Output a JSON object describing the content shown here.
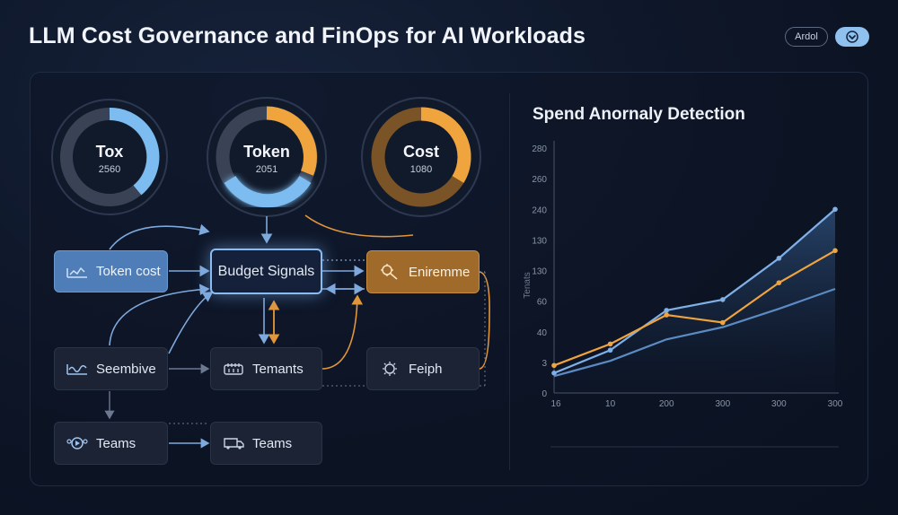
{
  "header": {
    "title": "LLM Cost Governance and FinOps for AI Workloads",
    "pill_label": "Ardol",
    "toggle_icon": "chevron-down-icon"
  },
  "gauges": [
    {
      "title": "Tox",
      "value": "2560",
      "color": "#7cbcf0",
      "progress": 0.4
    },
    {
      "title": "Token",
      "value": "2051",
      "color": "#f0a43e",
      "progress": 0.4
    },
    {
      "title": "Cost",
      "value": "1080",
      "color": "#f0a43e",
      "progress": 0.4
    }
  ],
  "flow": {
    "token_cost": "Token cost",
    "budget_signals": "Budget Signals",
    "enrichment": "Eniremme",
    "sembive": "Seembive",
    "tenants": "Temants",
    "feiph": "Feiph",
    "teams_left": "Teams",
    "teams_right": "Teams"
  },
  "colors": {
    "accent_blue": "#7cbcf0",
    "accent_orange": "#f0a43e",
    "budget_glow": "#8bbcf0"
  },
  "chart_data": {
    "type": "line",
    "title": "Spend Anornaly Detection",
    "ylabel": "Tenats",
    "x_tick_labels": [
      "16",
      "10",
      "200",
      "300",
      "300",
      "300"
    ],
    "y_tick_labels": [
      "0",
      "3",
      "40",
      "60",
      "130",
      "130",
      "240",
      "260",
      "280"
    ],
    "series": [
      {
        "color": "#7fb0e8",
        "values": [
          0.65,
          1.4,
          2.7,
          3.05,
          4.4,
          6.0
        ]
      },
      {
        "color": "#f0a43e",
        "values": [
          0.9,
          1.6,
          2.55,
          2.3,
          3.6,
          4.65
        ]
      },
      {
        "color": "#5b8bc2",
        "values": [
          0.55,
          1.05,
          1.75,
          2.15,
          2.75,
          3.4
        ]
      }
    ]
  }
}
